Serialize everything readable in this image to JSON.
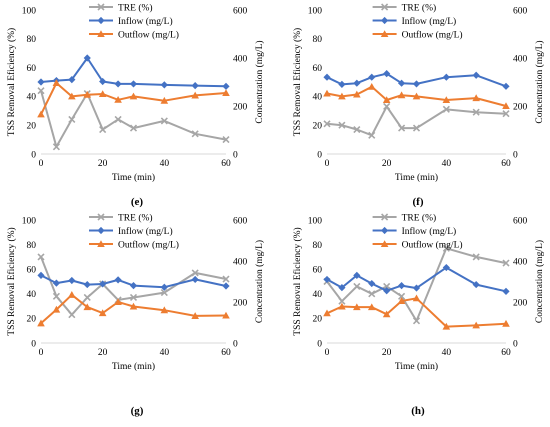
{
  "chart_data": [
    {
      "label": "(e)",
      "type": "line",
      "xlabel": "Time (min)",
      "ylabel_left": "TSS Removal Eficiency (%)",
      "ylabel_right": "Concentration (mg/L)",
      "xlim": [
        0,
        60
      ],
      "ylim_left": [
        0,
        100
      ],
      "ylim_right": [
        0,
        600
      ],
      "xticks": [
        0,
        20,
        40,
        60
      ],
      "yticks_left": [
        0,
        20,
        40,
        60,
        80,
        100
      ],
      "yticks_right": [
        0,
        200,
        400,
        600
      ],
      "legend_position": "top-center",
      "series": [
        {
          "name": "TRE (%)",
          "axis": "left",
          "color": "#a6a6a6",
          "marker": "x",
          "x": [
            0,
            5,
            10,
            15,
            20,
            25,
            30,
            40,
            50,
            60
          ],
          "y": [
            44,
            5,
            24,
            42,
            17,
            24,
            18,
            23,
            14,
            10
          ]
        },
        {
          "name": "Inflow (mg/L)",
          "axis": "right",
          "color": "#4472c4",
          "marker": "diamond",
          "x": [
            0,
            5,
            10,
            15,
            20,
            25,
            30,
            40,
            50,
            60
          ],
          "y": [
            300,
            306,
            310,
            400,
            302,
            292,
            292,
            288,
            285,
            282
          ]
        },
        {
          "name": "Outflow (mg/L)",
          "axis": "right",
          "color": "#ed7d31",
          "marker": "triangle",
          "x": [
            0,
            5,
            10,
            15,
            20,
            25,
            30,
            40,
            50,
            60
          ],
          "y": [
            165,
            296,
            240,
            247,
            250,
            226,
            240,
            222,
            244,
            254
          ]
        }
      ]
    },
    {
      "label": "(f)",
      "type": "line",
      "xlabel": "Time (min)",
      "ylabel_left": "TSS Removal Eficiency (%)",
      "ylabel_right": "Concentration (mg/L)",
      "xlim": [
        0,
        60
      ],
      "ylim_left": [
        0,
        100
      ],
      "ylim_right": [
        0,
        600
      ],
      "xticks": [
        0,
        20,
        40,
        60
      ],
      "yticks_left": [
        0,
        20,
        40,
        60,
        80,
        100
      ],
      "yticks_right": [
        0,
        200,
        400,
        600
      ],
      "legend_position": "top-center",
      "series": [
        {
          "name": "TRE (%)",
          "axis": "left",
          "color": "#a6a6a6",
          "marker": "x",
          "x": [
            0,
            5,
            10,
            15,
            20,
            25,
            30,
            40,
            50,
            60
          ],
          "y": [
            21,
            20,
            17,
            13,
            33,
            18,
            18,
            31,
            29,
            28
          ]
        },
        {
          "name": "Inflow (mg/L)",
          "axis": "right",
          "color": "#4472c4",
          "marker": "diamond",
          "x": [
            0,
            5,
            10,
            15,
            20,
            25,
            30,
            40,
            50,
            60
          ],
          "y": [
            320,
            290,
            295,
            320,
            335,
            295,
            292,
            320,
            328,
            282
          ]
        },
        {
          "name": "Outflow (mg/L)",
          "axis": "right",
          "color": "#ed7d31",
          "marker": "triangle",
          "x": [
            0,
            5,
            10,
            15,
            20,
            25,
            30,
            40,
            50,
            60
          ],
          "y": [
            252,
            240,
            248,
            280,
            225,
            245,
            240,
            225,
            233,
            200
          ]
        }
      ]
    },
    {
      "label": "(g)",
      "type": "line",
      "xlabel": "Time (min)",
      "ylabel_left": "TSS Removal Eficiency (%)",
      "ylabel_right": "Concentration (mg/L)",
      "xlim": [
        0,
        60
      ],
      "ylim_left": [
        0,
        100
      ],
      "ylim_right": [
        0,
        600
      ],
      "xticks": [
        0,
        20,
        40,
        60
      ],
      "yticks_left": [
        0,
        20,
        40,
        60,
        80,
        100
      ],
      "yticks_right": [
        0,
        200,
        400,
        600
      ],
      "legend_position": "top-center",
      "series": [
        {
          "name": "TRE (%)",
          "axis": "left",
          "color": "#a6a6a6",
          "marker": "x",
          "x": [
            0,
            5,
            10,
            15,
            20,
            25,
            30,
            40,
            50,
            60
          ],
          "y": [
            70,
            38,
            23,
            37,
            48,
            35,
            37,
            41,
            57,
            52
          ]
        },
        {
          "name": "Inflow (mg/L)",
          "axis": "right",
          "color": "#4472c4",
          "marker": "diamond",
          "x": [
            0,
            5,
            10,
            15,
            20,
            25,
            30,
            40,
            50,
            60
          ],
          "y": [
            330,
            292,
            305,
            285,
            288,
            308,
            280,
            272,
            310,
            278
          ]
        },
        {
          "name": "Outflow (mg/L)",
          "axis": "right",
          "color": "#ed7d31",
          "marker": "triangle",
          "x": [
            0,
            5,
            10,
            15,
            20,
            25,
            30,
            40,
            50,
            60
          ],
          "y": [
            96,
            163,
            235,
            175,
            146,
            200,
            178,
            160,
            132,
            134
          ]
        }
      ]
    },
    {
      "label": "(h)",
      "type": "line",
      "xlabel": "Time (min)",
      "ylabel_left": "TSS Removal Eficiency (%)",
      "ylabel_right": "Concentration (mg/L)",
      "xlim": [
        0,
        60
      ],
      "ylim_left": [
        0,
        100
      ],
      "ylim_right": [
        0,
        600
      ],
      "xticks": [
        0,
        20,
        40,
        60
      ],
      "yticks_left": [
        0,
        20,
        40,
        60,
        80,
        100
      ],
      "yticks_right": [
        0,
        200,
        400,
        600
      ],
      "legend_position": "top-center",
      "series": [
        {
          "name": "TRE (%)",
          "axis": "left",
          "color": "#a6a6a6",
          "marker": "x",
          "x": [
            0,
            5,
            10,
            15,
            20,
            25,
            30,
            40,
            50,
            60
          ],
          "y": [
            50,
            34,
            46,
            40,
            46,
            38,
            18,
            77,
            70,
            65
          ]
        },
        {
          "name": "Inflow (mg/L)",
          "axis": "right",
          "color": "#4472c4",
          "marker": "diamond",
          "x": [
            0,
            5,
            10,
            15,
            20,
            25,
            30,
            40,
            50,
            60
          ],
          "y": [
            310,
            270,
            330,
            290,
            255,
            280,
            268,
            368,
            285,
            252
          ]
        },
        {
          "name": "Outflow (mg/L)",
          "axis": "right",
          "color": "#ed7d31",
          "marker": "triangle",
          "x": [
            0,
            5,
            10,
            15,
            20,
            25,
            30,
            40,
            50,
            60
          ],
          "y": [
            145,
            178,
            175,
            175,
            140,
            205,
            218,
            80,
            86,
            94
          ]
        }
      ]
    }
  ]
}
